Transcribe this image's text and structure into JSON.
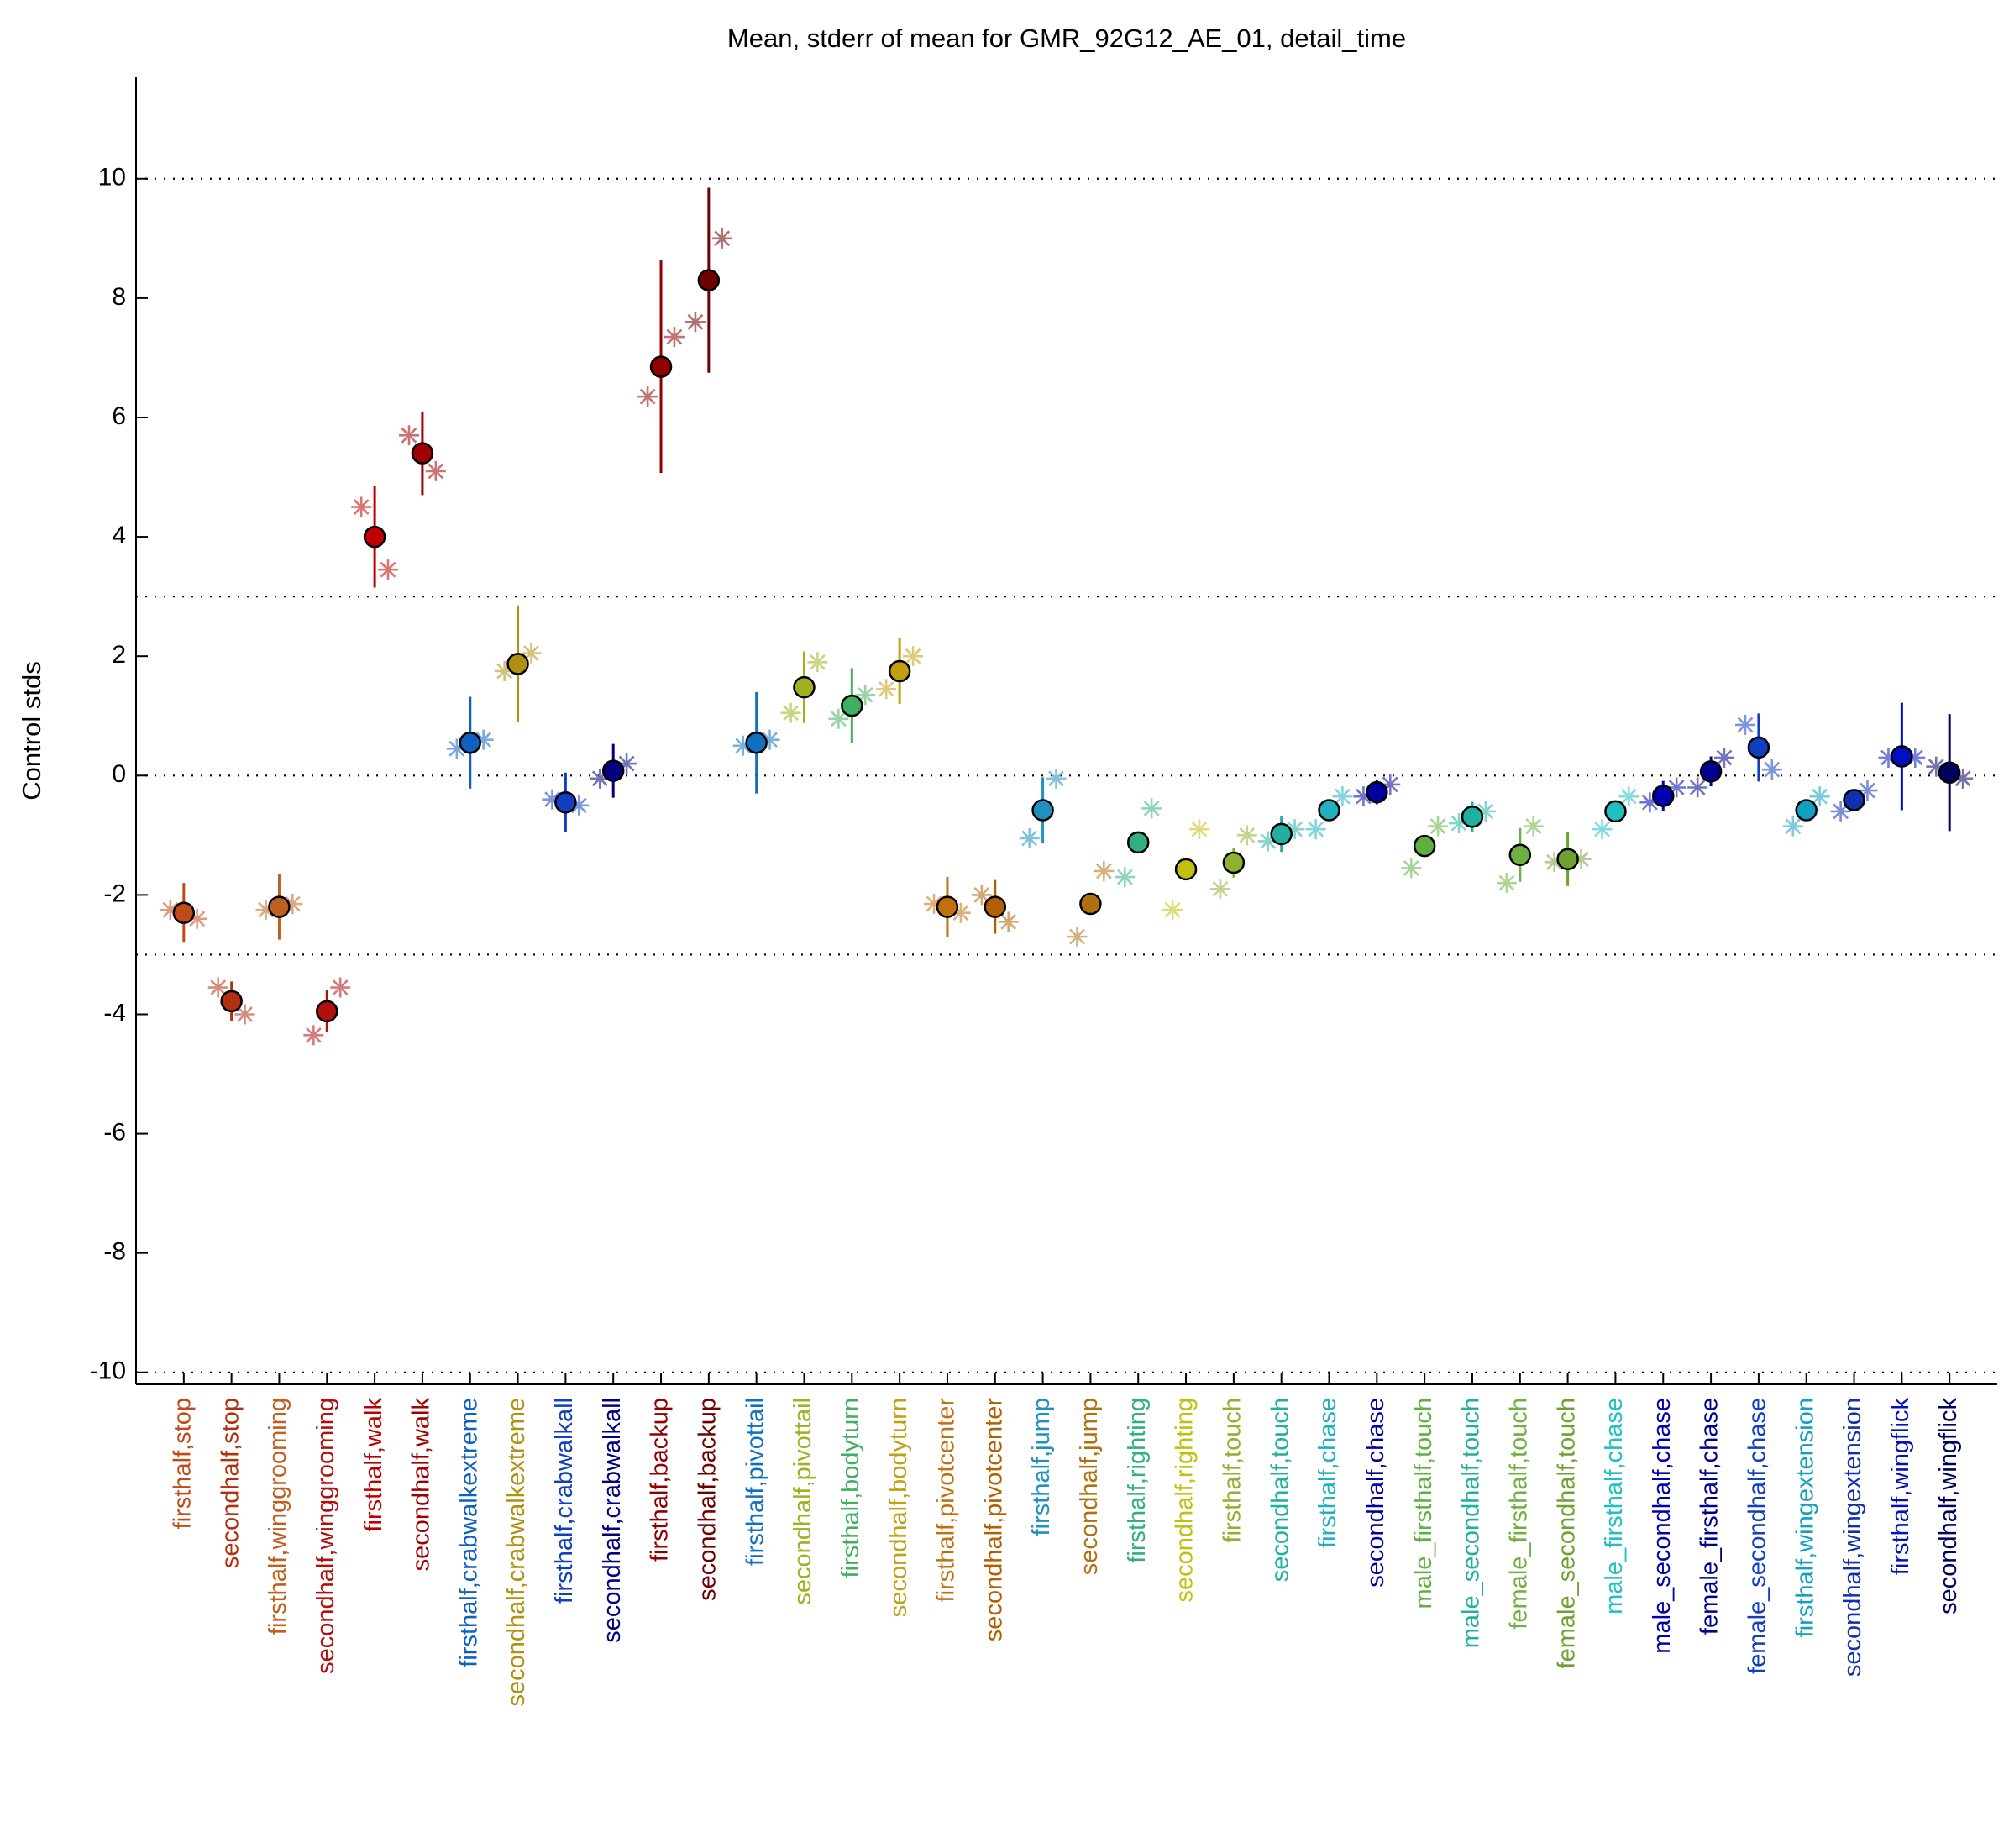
{
  "chart_data": {
    "type": "errorbar",
    "title": "Mean, stderr of mean for GMR_92G12_AE_01, detail_time",
    "ylabel": "Control stds",
    "categories": [
      "firsthalf,stop",
      "secondhalf,stop",
      "firsthalf,winggrooming",
      "secondhalf,winggrooming",
      "firsthalf,walk",
      "secondhalf,walk",
      "firsthalf,crabwalkextreme",
      "secondhalf,crabwalkextreme",
      "firsthalf,crabwalkall",
      "secondhalf,crabwalkall",
      "firsthalf,backup",
      "secondhalf,backup",
      "firsthalf,pivottail",
      "secondhalf,pivottail",
      "firsthalf,bodyturn",
      "secondhalf,bodyturn",
      "firsthalf,pivotcenter",
      "secondhalf,pivotcenter",
      "firsthalf,jump",
      "secondhalf,jump",
      "firsthalf,righting",
      "secondhalf,righting",
      "firsthalf,touch",
      "secondhalf,touch",
      "firsthalf,chase",
      "secondhalf,chase",
      "male_firsthalf,touch",
      "male_secondhalf,touch",
      "female_firsthalf,touch",
      "female_secondhalf,touch",
      "male_firsthalf,chase",
      "male_secondhalf,chase",
      "female_firsthalf,chase",
      "female_secondhalf,chase",
      "firsthalf,wingextension",
      "secondhalf,wingextension",
      "firsthalf,wingflick",
      "secondhalf,wingflick"
    ],
    "values": [
      -2.3,
      -3.78,
      -2.2,
      -3.95,
      4.0,
      5.4,
      0.55,
      1.87,
      -0.45,
      0.08,
      6.85,
      8.3,
      0.55,
      1.48,
      1.17,
      1.75,
      -2.2,
      -2.2,
      -0.58,
      -2.15,
      -1.12,
      -1.57,
      -1.46,
      -0.98,
      -0.58,
      -0.28,
      -1.18,
      -0.69,
      -1.33,
      -1.4,
      -0.6,
      -0.34,
      0.07,
      0.47,
      -0.58,
      -0.41,
      0.32,
      0.05
    ],
    "errors": [
      0.5,
      0.33,
      0.55,
      0.35,
      0.85,
      0.7,
      0.77,
      0.98,
      0.5,
      0.45,
      1.78,
      1.55,
      0.85,
      0.6,
      0.63,
      0.55,
      0.5,
      0.45,
      0.55,
      0.15,
      0.1,
      0.1,
      0.25,
      0.3,
      0.15,
      0.2,
      0.15,
      0.25,
      0.45,
      0.45,
      0.1,
      0.25,
      0.25,
      0.57,
      0.1,
      0.15,
      0.9,
      0.98
    ],
    "stars_left": [
      -2.25,
      -3.55,
      -2.25,
      -4.35,
      4.5,
      5.7,
      0.45,
      1.75,
      -0.4,
      -0.05,
      6.35,
      7.6,
      0.5,
      1.05,
      0.95,
      1.45,
      -2.15,
      -2.0,
      -1.05,
      -2.7,
      -1.7,
      -2.25,
      -1.9,
      -1.1,
      -0.9,
      -0.35,
      -1.55,
      -0.8,
      -1.8,
      -1.45,
      -0.9,
      -0.45,
      -0.2,
      0.85,
      -0.85,
      -0.6,
      0.3,
      0.15
    ],
    "stars_right": [
      -2.4,
      -4.0,
      -2.15,
      -3.55,
      3.45,
      5.1,
      0.6,
      2.05,
      -0.5,
      0.2,
      7.35,
      9.0,
      0.6,
      1.9,
      1.35,
      2.0,
      -2.3,
      -2.45,
      -0.05,
      -1.6,
      -0.55,
      -0.9,
      -1.0,
      -0.9,
      -0.35,
      -0.15,
      -0.85,
      -0.6,
      -0.85,
      -1.4,
      -0.35,
      -0.2,
      0.3,
      0.1,
      -0.35,
      -0.25,
      0.3,
      -0.05
    ],
    "colors": [
      "#c04a1a",
      "#b03010",
      "#c06020",
      "#b01010",
      "#c00000",
      "#a00000",
      "#1060c0",
      "#b09010",
      "#1040c0",
      "#000080",
      "#900000",
      "#700000",
      "#1070c0",
      "#a0b020",
      "#40b060",
      "#c0a010",
      "#c07010",
      "#b06000",
      "#2090c0",
      "#b07010",
      "#30b080",
      "#c0c010",
      "#90b030",
      "#20b0a0",
      "#20b0c0",
      "#0000a0",
      "#60b040",
      "#20b0a0",
      "#70b040",
      "#70a030",
      "#20c0c0",
      "#0000b0",
      "#000090",
      "#1040c0",
      "#10a0c0",
      "#1030b0",
      "#0010c0",
      "#000060"
    ],
    "xlim": [
      0,
      39
    ],
    "ylim": [
      -10.2,
      11.7
    ],
    "yticks": [
      -10,
      -8,
      -6,
      -4,
      -2,
      0,
      2,
      4,
      6,
      8,
      10
    ],
    "hlines": [
      -10,
      -3,
      0,
      3,
      10
    ]
  }
}
